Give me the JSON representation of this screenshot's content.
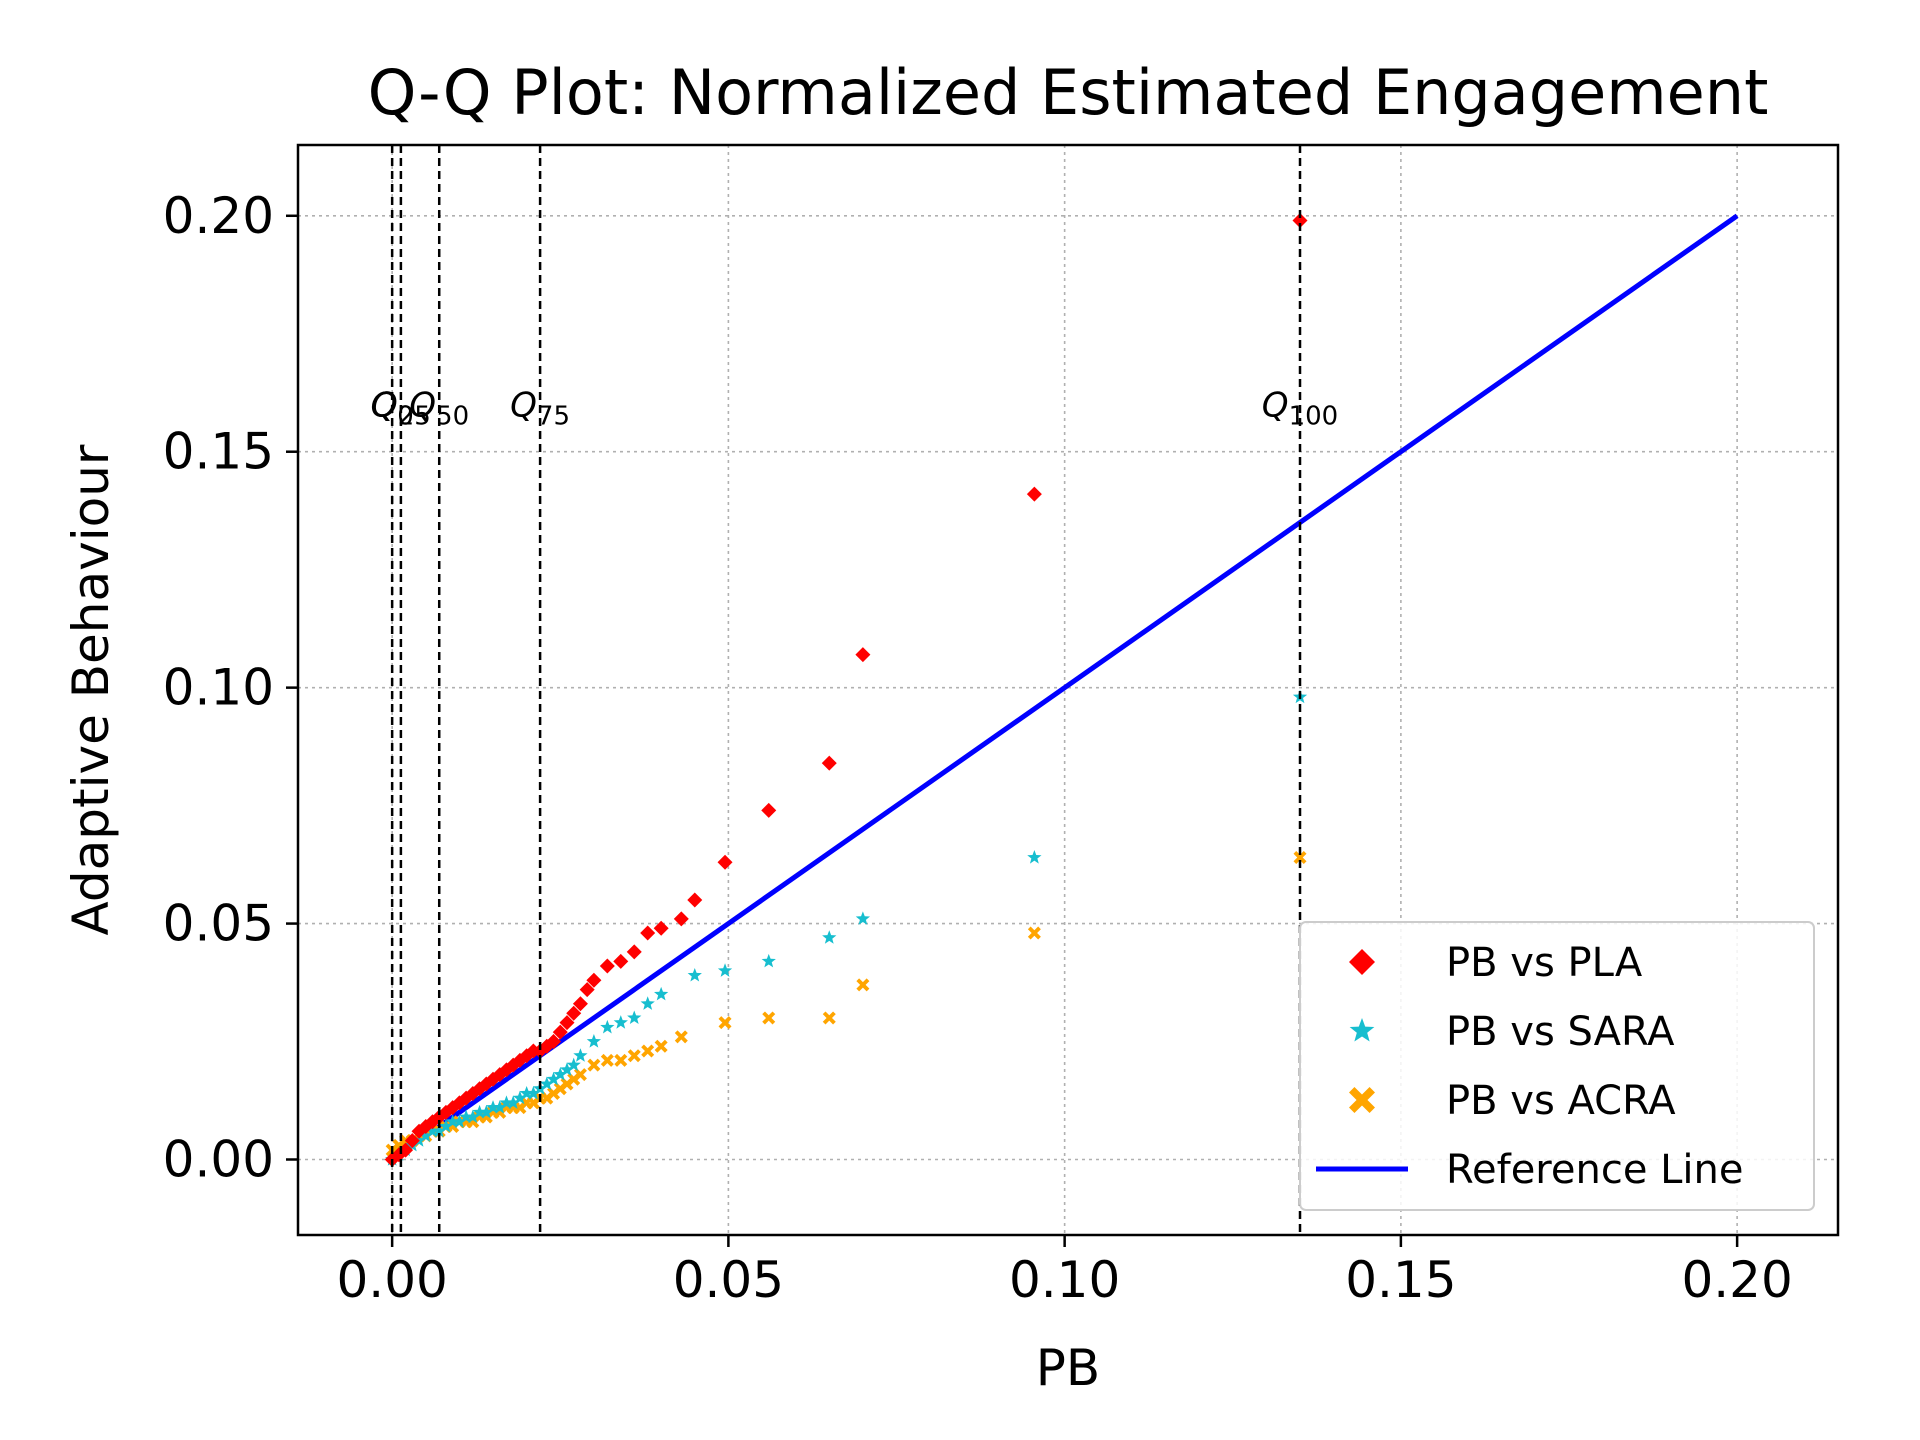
{
  "chart_data": {
    "type": "scatter",
    "title": "Q-Q Plot: Normalized Estimated Engagement",
    "xlabel": "PB",
    "ylabel": "Adaptive Behaviour",
    "xlim": [
      -0.014,
      0.215
    ],
    "ylim": [
      -0.016,
      0.215
    ],
    "xticks": [
      0.0,
      0.05,
      0.1,
      0.15,
      0.2
    ],
    "xtick_labels": [
      "0.00",
      "0.05",
      "0.10",
      "0.15",
      "0.20"
    ],
    "yticks": [
      0.0,
      0.05,
      0.1,
      0.15,
      0.2
    ],
    "ytick_labels": [
      "0.00",
      "0.05",
      "0.10",
      "0.15",
      "0.20"
    ],
    "grid": true,
    "legend_position": "bottom-right",
    "quantile_lines": [
      {
        "label": "Q",
        "sub": "0",
        "x": 0.0
      },
      {
        "label": "Q",
        "sub": "25",
        "x": 0.0013
      },
      {
        "label": "Q",
        "sub": "50",
        "x": 0.007
      },
      {
        "label": "Q",
        "sub": "75",
        "x": 0.022
      },
      {
        "label": "Q",
        "sub": "100",
        "x": 0.135
      }
    ],
    "quantile_label_y": 0.16,
    "series": [
      {
        "name": "PB vs PLA",
        "marker": "diamond",
        "color": "#ff0000",
        "x": [
          0.0,
          0.001,
          0.002,
          0.003,
          0.004,
          0.005,
          0.006,
          0.007,
          0.008,
          0.009,
          0.01,
          0.011,
          0.012,
          0.013,
          0.014,
          0.015,
          0.016,
          0.017,
          0.018,
          0.019,
          0.02,
          0.021,
          0.022,
          0.023,
          0.024,
          0.025,
          0.026,
          0.027,
          0.028,
          0.029,
          0.03,
          0.032,
          0.034,
          0.036,
          0.038,
          0.04,
          0.043,
          0.045,
          0.0495,
          0.056,
          0.065,
          0.07,
          0.0955,
          0.135
        ],
        "y": [
          0.0,
          0.001,
          0.002,
          0.004,
          0.006,
          0.007,
          0.008,
          0.009,
          0.01,
          0.011,
          0.012,
          0.013,
          0.014,
          0.015,
          0.016,
          0.017,
          0.018,
          0.019,
          0.02,
          0.021,
          0.022,
          0.023,
          0.023,
          0.024,
          0.025,
          0.027,
          0.029,
          0.031,
          0.033,
          0.036,
          0.038,
          0.041,
          0.042,
          0.044,
          0.048,
          0.049,
          0.051,
          0.055,
          0.063,
          0.074,
          0.084,
          0.107,
          0.141,
          0.199
        ]
      },
      {
        "name": "PB vs SARA",
        "marker": "star",
        "color": "#17becf",
        "x": [
          0.0,
          0.001,
          0.002,
          0.003,
          0.004,
          0.005,
          0.006,
          0.007,
          0.008,
          0.009,
          0.01,
          0.011,
          0.012,
          0.013,
          0.014,
          0.015,
          0.016,
          0.017,
          0.018,
          0.019,
          0.02,
          0.021,
          0.022,
          0.023,
          0.024,
          0.025,
          0.026,
          0.027,
          0.028,
          0.03,
          0.032,
          0.034,
          0.036,
          0.038,
          0.04,
          0.045,
          0.0495,
          0.056,
          0.065,
          0.07,
          0.0955,
          0.135
        ],
        "y": [
          0.0,
          0.001,
          0.002,
          0.003,
          0.004,
          0.005,
          0.006,
          0.006,
          0.007,
          0.008,
          0.008,
          0.009,
          0.009,
          0.01,
          0.01,
          0.011,
          0.011,
          0.012,
          0.012,
          0.013,
          0.014,
          0.014,
          0.015,
          0.016,
          0.017,
          0.018,
          0.019,
          0.02,
          0.022,
          0.025,
          0.028,
          0.029,
          0.03,
          0.033,
          0.035,
          0.039,
          0.04,
          0.042,
          0.047,
          0.051,
          0.064,
          0.098
        ]
      },
      {
        "name": "PB vs ACRA",
        "marker": "x",
        "color": "#ffa500",
        "x": [
          0.0,
          0.001,
          0.002,
          0.003,
          0.004,
          0.005,
          0.006,
          0.007,
          0.008,
          0.009,
          0.01,
          0.011,
          0.012,
          0.013,
          0.014,
          0.015,
          0.016,
          0.017,
          0.018,
          0.019,
          0.02,
          0.021,
          0.022,
          0.023,
          0.024,
          0.025,
          0.026,
          0.027,
          0.028,
          0.03,
          0.032,
          0.034,
          0.036,
          0.038,
          0.04,
          0.043,
          0.0495,
          0.056,
          0.065,
          0.07,
          0.0955,
          0.135
        ],
        "y": [
          0.002,
          0.003,
          0.004,
          0.004,
          0.005,
          0.005,
          0.006,
          0.006,
          0.007,
          0.007,
          0.008,
          0.008,
          0.008,
          0.009,
          0.009,
          0.01,
          0.01,
          0.011,
          0.011,
          0.011,
          0.012,
          0.012,
          0.013,
          0.013,
          0.014,
          0.015,
          0.016,
          0.017,
          0.018,
          0.02,
          0.021,
          0.021,
          0.022,
          0.023,
          0.024,
          0.026,
          0.029,
          0.03,
          0.03,
          0.037,
          0.048,
          0.064
        ]
      },
      {
        "name": "Reference Line",
        "marker": "line",
        "color": "#0000ff",
        "x": [
          0.0,
          0.2
        ],
        "y": [
          0.0,
          0.2
        ]
      }
    ]
  }
}
